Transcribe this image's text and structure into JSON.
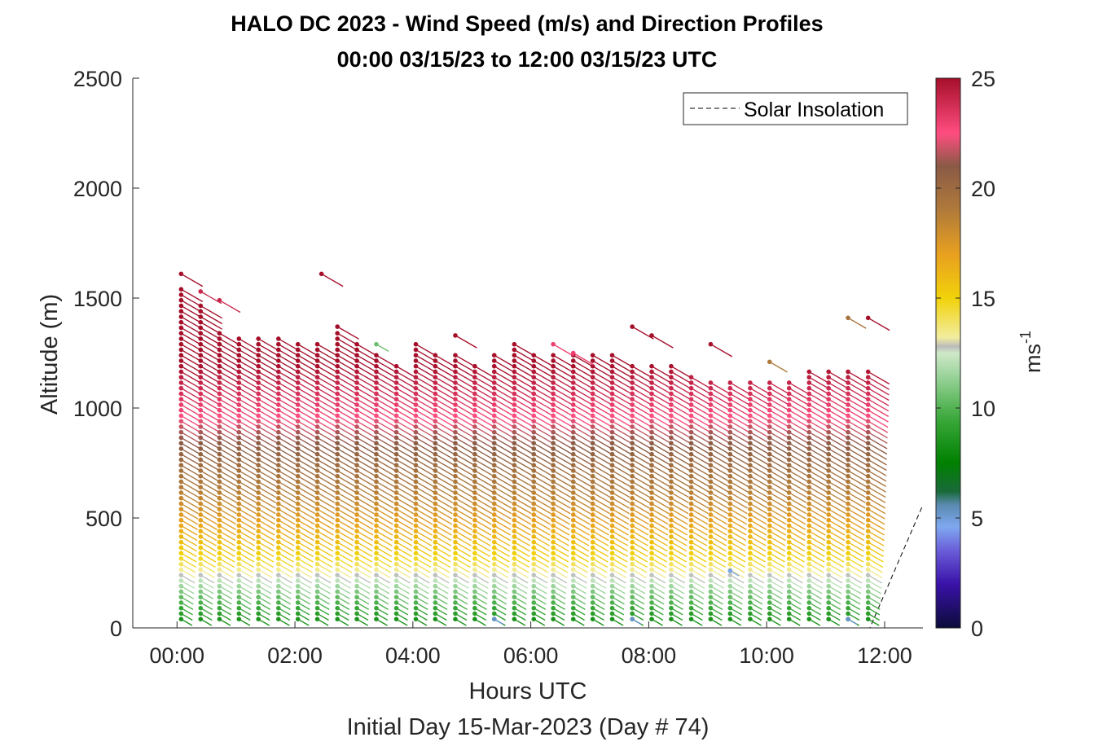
{
  "chart_data": {
    "type": "wind-barb profile",
    "title": "HALO DC 2023 - Wind Speed (m/s) and Direction Profiles",
    "subtitle": "00:00 03/15/23 to 12:00 03/15/23  UTC",
    "xlabel": "Hours UTC",
    "ylabel": "Altitude (m)",
    "footer": "Initial Day 15-Mar-2023 (Day # 74)",
    "xlim": [
      -0.75,
      12.65
    ],
    "ylim": [
      0,
      2500
    ],
    "x_ticks": [
      0,
      2,
      4,
      6,
      8,
      10,
      12
    ],
    "x_tick_labels": [
      "00:00",
      "02:00",
      "04:00",
      "06:00",
      "08:00",
      "10:00",
      "12:00"
    ],
    "y_ticks": [
      0,
      500,
      1000,
      1500,
      2000,
      2500
    ],
    "y_tick_labels": [
      "0",
      "500",
      "1000",
      "1500",
      "2000",
      "2500"
    ],
    "legend": {
      "entries": [
        "Solar Insolation"
      ],
      "placement": "top-right"
    },
    "grid": false,
    "colorbar": {
      "label": "ms",
      "label_superscript": "-1",
      "range": [
        0,
        25
      ],
      "ticks": [
        0,
        5,
        10,
        15,
        20,
        25
      ],
      "tick_labels": [
        "0",
        "5",
        "10",
        "15",
        "20",
        "25"
      ],
      "stops": [
        {
          "v": 0,
          "c": "#0b0b3b"
        },
        {
          "v": 2,
          "c": "#3a12a8"
        },
        {
          "v": 3.5,
          "c": "#6a5cd8"
        },
        {
          "v": 4.6,
          "c": "#7fa8f0"
        },
        {
          "v": 5.6,
          "c": "#5a8ab0"
        },
        {
          "v": 6.2,
          "c": "#1a6a3a"
        },
        {
          "v": 7.5,
          "c": "#008000"
        },
        {
          "v": 9.5,
          "c": "#3aa83a"
        },
        {
          "v": 11.5,
          "c": "#9dd49d"
        },
        {
          "v": 12.5,
          "c": "#cfe8c8"
        },
        {
          "v": 12.8,
          "c": "#bbbbbb"
        },
        {
          "v": 13.2,
          "c": "#f2eda0"
        },
        {
          "v": 15,
          "c": "#f2d20a"
        },
        {
          "v": 17,
          "c": "#e8a020"
        },
        {
          "v": 19,
          "c": "#b07a3a"
        },
        {
          "v": 21,
          "c": "#8a5a46"
        },
        {
          "v": 22.5,
          "c": "#ff4d80"
        },
        {
          "v": 25,
          "c": "#a50f2a"
        }
      ]
    },
    "solar_insolation": [
      [
        -0.75,
        0
      ],
      [
        11.75,
        0
      ],
      [
        12.65,
        560
      ]
    ],
    "profile_times": [
      0.07,
      0.4,
      0.72,
      1.05,
      1.38,
      1.72,
      2.05,
      2.38,
      2.72,
      3.05,
      3.38,
      3.72,
      4.05,
      4.38,
      4.72,
      5.05,
      5.38,
      5.72,
      6.05,
      6.38,
      6.72,
      7.05,
      7.38,
      7.72,
      8.05,
      8.38,
      8.72,
      9.05,
      9.38,
      9.72,
      10.05,
      10.38,
      10.72,
      11.05,
      11.38,
      11.72
    ],
    "profile_top_altitudes": [
      1560,
      1480,
      1340,
      1330,
      1330,
      1330,
      1300,
      1300,
      1360,
      1300,
      1260,
      1210,
      1300,
      1260,
      1260,
      1210,
      1250,
      1300,
      1260,
      1260,
      1260,
      1250,
      1260,
      1210,
      1210,
      1210,
      1150,
      1130,
      1130,
      1120,
      1120,
      1120,
      1170,
      1180,
      1180,
      1180
    ],
    "altitude_step_m": 25,
    "lowest_altitude_m": 40,
    "profile_speed_m_s": [
      {
        "alt": 40,
        "speed": 8.5
      },
      {
        "alt": 150,
        "speed": 10.5
      },
      {
        "alt": 250,
        "speed": 13
      },
      {
        "alt": 330,
        "speed": 15
      },
      {
        "alt": 450,
        "speed": 16.5
      },
      {
        "alt": 600,
        "speed": 18.5
      },
      {
        "alt": 750,
        "speed": 20
      },
      {
        "alt": 900,
        "speed": 21.5
      },
      {
        "alt": 1000,
        "speed": 23
      },
      {
        "alt": 1200,
        "speed": 25
      }
    ],
    "wind_direction_deg": 300,
    "isolated_barbs": [
      {
        "t": 0.07,
        "alt": 1610,
        "speed": 25
      },
      {
        "t": 0.4,
        "alt": 1530,
        "speed": 24
      },
      {
        "t": 0.72,
        "alt": 1490,
        "speed": 24
      },
      {
        "t": 2.45,
        "alt": 1610,
        "speed": 25
      },
      {
        "t": 2.72,
        "alt": 1370,
        "speed": 25
      },
      {
        "t": 3.38,
        "alt": 1290,
        "speed": 10.5
      },
      {
        "t": 4.72,
        "alt": 1330,
        "speed": 25
      },
      {
        "t": 6.38,
        "alt": 1290,
        "speed": 23
      },
      {
        "t": 6.72,
        "alt": 1250,
        "speed": 23
      },
      {
        "t": 7.72,
        "alt": 1370,
        "speed": 25
      },
      {
        "t": 8.05,
        "alt": 1330,
        "speed": 25
      },
      {
        "t": 9.05,
        "alt": 1290,
        "speed": 25
      },
      {
        "t": 10.05,
        "alt": 1210,
        "speed": 19
      },
      {
        "t": 11.38,
        "alt": 1410,
        "speed": 19.5
      },
      {
        "t": 11.72,
        "alt": 1410,
        "speed": 25
      },
      {
        "t": 5.38,
        "alt": 40,
        "speed": 5.2
      },
      {
        "t": 7.72,
        "alt": 40,
        "speed": 5.2
      },
      {
        "t": 11.38,
        "alt": 40,
        "speed": 5.2
      },
      {
        "t": 9.38,
        "alt": 260,
        "speed": 4.8
      }
    ]
  }
}
